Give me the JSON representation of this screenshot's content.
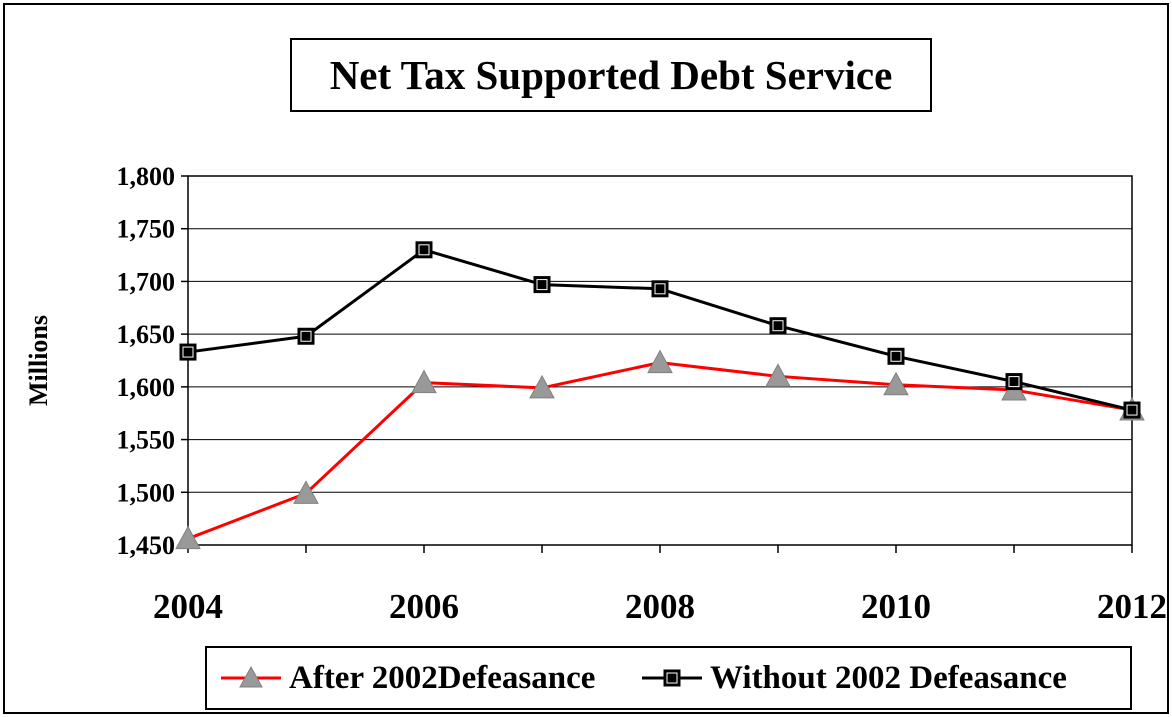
{
  "chart_data": {
    "type": "line",
    "title": "Net Tax Supported Debt Service",
    "ylabel": "Millions",
    "xlabel": "",
    "x": [
      2004,
      2005,
      2006,
      2007,
      2008,
      2009,
      2010,
      2011,
      2012
    ],
    "xtick_labels": [
      "2004",
      "2006",
      "2008",
      "2010",
      "2012"
    ],
    "ylim": [
      1450,
      1800
    ],
    "ytick_labels": [
      "1,450",
      "1,500",
      "1,550",
      "1,600",
      "1,650",
      "1,700",
      "1,750",
      "1,800"
    ],
    "grid": "horizontal",
    "legend_position": "bottom",
    "series": [
      {
        "name": "After 2002Defeasance",
        "color": "#ff0000",
        "marker": "triangle",
        "marker_color": "#999999",
        "values": [
          1456,
          1499,
          1604,
          1599,
          1623,
          1610,
          1602,
          1597,
          1578
        ]
      },
      {
        "name": "Without 2002 Defeasance",
        "color": "#000000",
        "marker": "square",
        "marker_color": "#000000",
        "values": [
          1633,
          1648,
          1730,
          1697,
          1693,
          1658,
          1629,
          1605,
          1578
        ]
      }
    ]
  }
}
